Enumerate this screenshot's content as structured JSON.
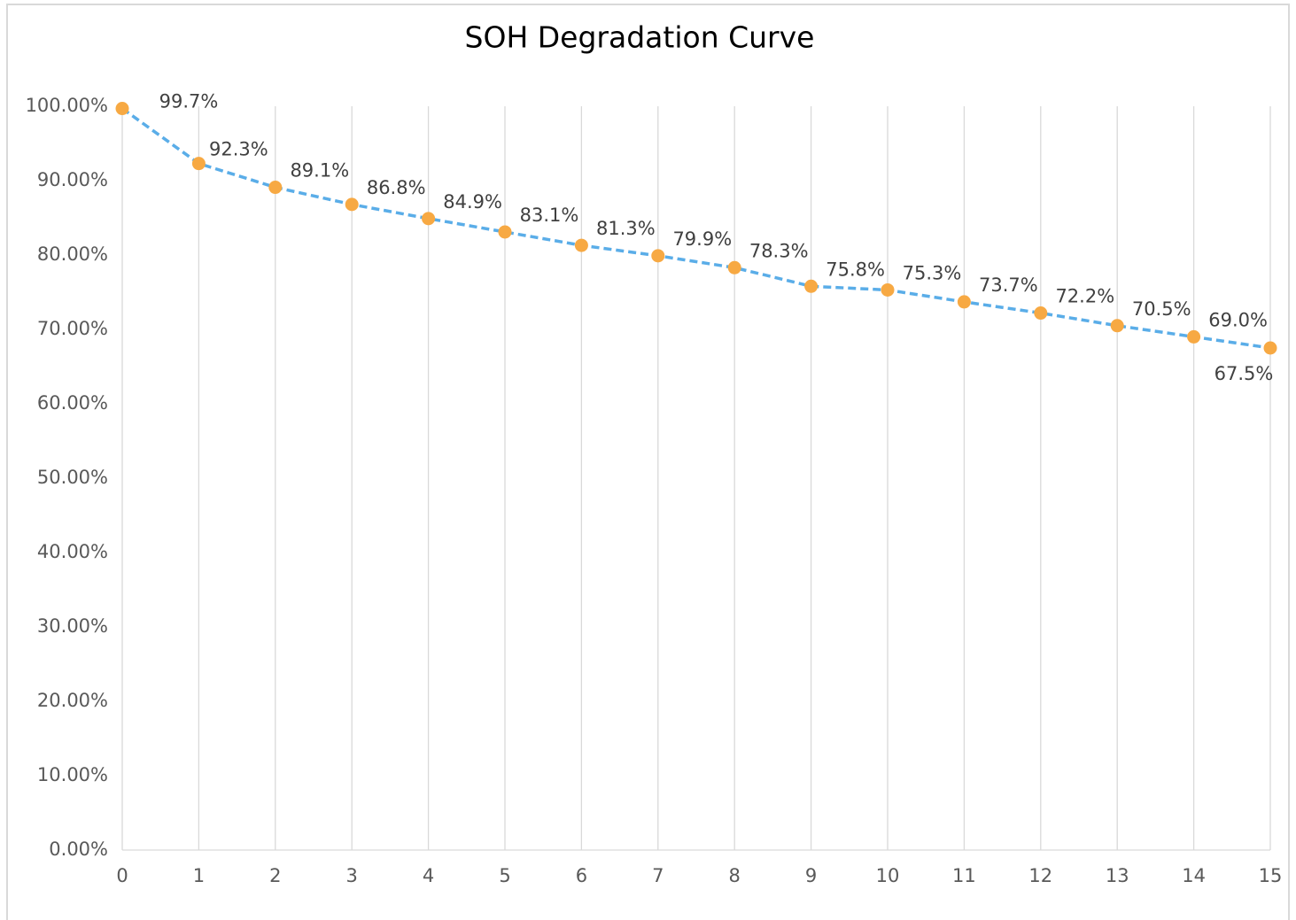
{
  "chart_data": {
    "type": "line",
    "title": "SOH Degradation Curve",
    "x": [
      0,
      1,
      2,
      3,
      4,
      5,
      6,
      7,
      8,
      9,
      10,
      11,
      12,
      13,
      14,
      15
    ],
    "series": [
      {
        "color": "#5aade8",
        "marker_color": "#f7a943",
        "values": [
          99.7,
          92.3,
          89.1,
          86.8,
          84.9,
          83.1,
          81.3,
          79.9,
          78.3,
          75.8,
          75.3,
          73.7,
          72.2,
          70.5,
          69.0,
          67.5
        ],
        "value_labels": [
          "99.7%",
          "92.3%",
          "89.1%",
          "86.8%",
          "84.9%",
          "83.1%",
          "81.3%",
          "79.9%",
          "78.3%",
          "75.8%",
          "75.3%",
          "73.7%",
          "72.2%",
          "70.5%",
          "69.0%",
          "67.5%"
        ]
      }
    ],
    "xlim": [
      0,
      15
    ],
    "xticks": [
      0,
      1,
      2,
      3,
      4,
      5,
      6,
      7,
      8,
      9,
      10,
      11,
      12,
      13,
      14,
      15
    ],
    "ylim": [
      0,
      100
    ],
    "yticks": [
      {
        "value": 0,
        "label": "0.00%"
      },
      {
        "value": 10,
        "label": "10.00%"
      },
      {
        "value": 20,
        "label": "20.00%"
      },
      {
        "value": 30,
        "label": "30.00%"
      },
      {
        "value": 40,
        "label": "40.00%"
      },
      {
        "value": 50,
        "label": "50.00%"
      },
      {
        "value": 60,
        "label": "60.00%"
      },
      {
        "value": 70,
        "label": "70.00%"
      },
      {
        "value": 80,
        "label": "80.00%"
      },
      {
        "value": 90,
        "label": "90.00%"
      },
      {
        "value": 100,
        "label": "100.00%"
      }
    ],
    "grid": "x"
  }
}
